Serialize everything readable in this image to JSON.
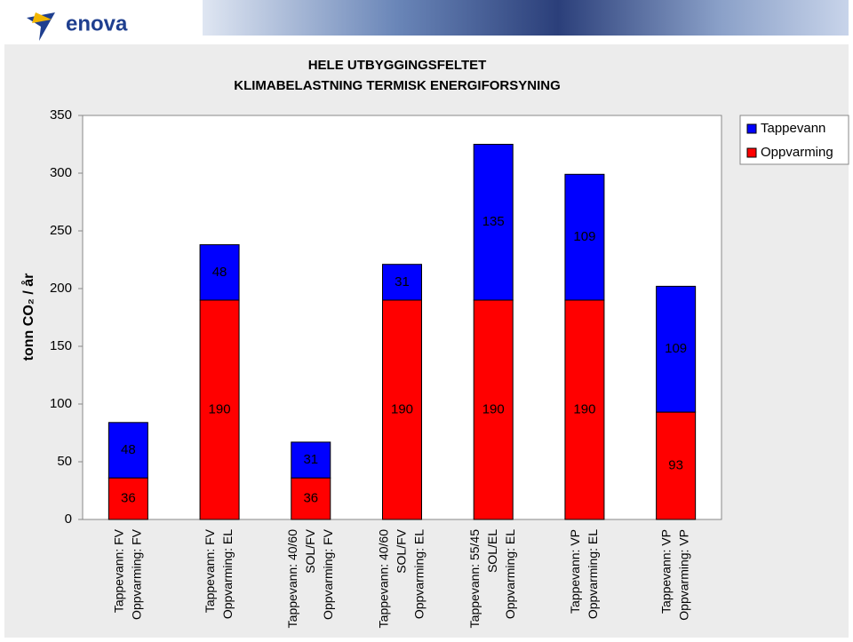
{
  "header": {
    "logo": "enova"
  },
  "chart_data": {
    "type": "stacked_bar",
    "title": [
      "HELE UTBYGGINGSFELTET",
      "KLIMABELASTNING TERMISK ENERGIFORSYNING"
    ],
    "y_label": "tonn CO₂ / år",
    "categories": [
      [
        "Tappevann: FV",
        "Oppvarming: FV"
      ],
      [
        "Tappevann: FV",
        "Oppvarming: EL"
      ],
      [
        "Tappevann: 40/60",
        "SOL/FV",
        "Oppvarming: FV"
      ],
      [
        "Tappevann: 40/60",
        "SOL/FV",
        "Oppvarming: EL"
      ],
      [
        "Tappevann: 55/45",
        "SOL/EL",
        "Oppvarming: EL"
      ],
      [
        "Tappevann: VP",
        "Oppvarming: EL"
      ],
      [
        "Tappevann: VP",
        "Oppvarming: VP"
      ]
    ],
    "series": [
      {
        "name": "Oppvarming",
        "color": "#ff0000",
        "values": [
          36,
          190,
          36,
          190,
          190,
          190,
          93
        ]
      },
      {
        "name": "Tappevann",
        "color": "#0000ff",
        "values": [
          48,
          48,
          31,
          31,
          135,
          109,
          109
        ]
      }
    ],
    "ylim": [
      0,
      350
    ],
    "yticks": [
      0,
      50,
      100,
      150,
      200,
      250,
      300,
      350
    ],
    "grid": false,
    "legend": "upper right"
  }
}
